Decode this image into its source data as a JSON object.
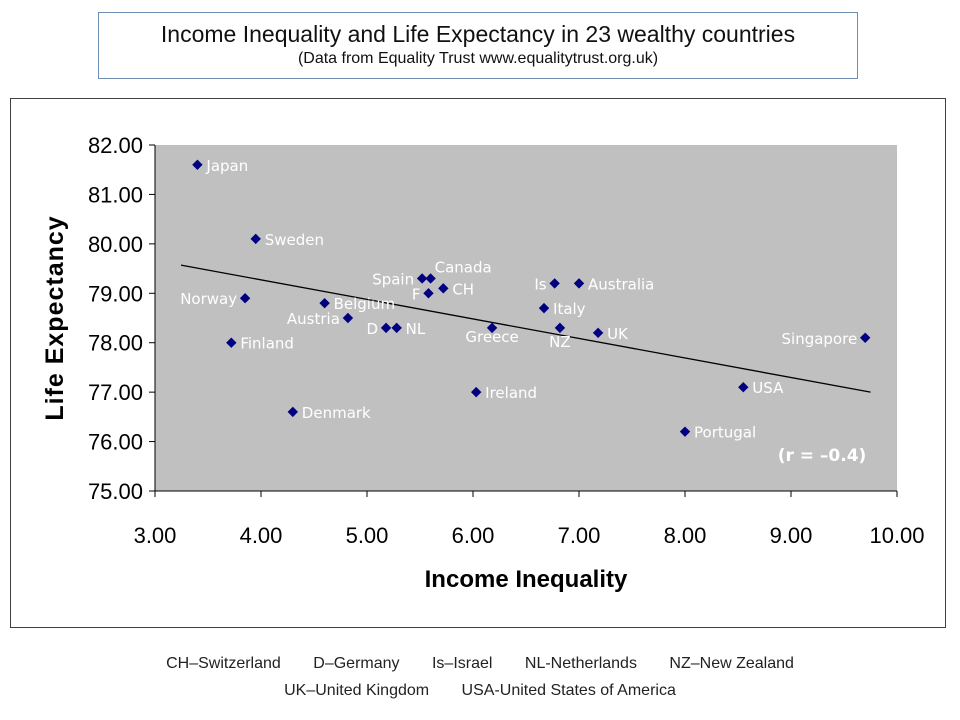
{
  "title": "Income Inequality and Life Expectancy in 23 wealthy countries",
  "subtitle": "(Data from Equality Trust  www.equalitytrust.org.uk)",
  "footer": {
    "line1": [
      "CH–Switzerland",
      "D–Germany",
      "Is–Israel",
      "NL-Netherlands",
      "NZ–New Zealand"
    ],
    "line2": [
      "UK–United Kingdom",
      "USA-United States of America"
    ]
  },
  "colors": {
    "plot_background": "#c0c0c0",
    "marker": "#000080",
    "point_label": "#ffffff",
    "trendline": "#000000"
  },
  "chart_data": {
    "type": "scatter",
    "xlabel": "Income Inequality",
    "ylabel": "Life Expectancy",
    "xlim": [
      3.0,
      10.0
    ],
    "ylim": [
      75.0,
      82.0
    ],
    "xticks": [
      "3.00",
      "4.00",
      "5.00",
      "6.00",
      "7.00",
      "8.00",
      "9.00",
      "10.00"
    ],
    "yticks": [
      "75.00",
      "76.00",
      "77.00",
      "78.00",
      "79.00",
      "80.00",
      "81.00",
      "82.00"
    ],
    "grid": false,
    "legend": "none",
    "annotation": "(r = –0.4)",
    "trendline": {
      "x": [
        3.25,
        9.75
      ],
      "y": [
        79.57,
        77.0
      ]
    },
    "points": [
      {
        "label": "Japan",
        "x": 3.4,
        "y": 81.6,
        "pos": "right"
      },
      {
        "label": "Sweden",
        "x": 3.95,
        "y": 80.1,
        "pos": "right"
      },
      {
        "label": "Norway",
        "x": 3.85,
        "y": 78.9,
        "pos": "left"
      },
      {
        "label": "Finland",
        "x": 3.72,
        "y": 78.0,
        "pos": "right"
      },
      {
        "label": "Denmark",
        "x": 4.3,
        "y": 76.6,
        "pos": "right"
      },
      {
        "label": "Belgium",
        "x": 4.6,
        "y": 78.8,
        "pos": "right"
      },
      {
        "label": "Austria",
        "x": 4.82,
        "y": 78.5,
        "pos": "left"
      },
      {
        "label": "D",
        "x": 5.18,
        "y": 78.3,
        "pos": "left"
      },
      {
        "label": "NL",
        "x": 5.28,
        "y": 78.3,
        "pos": "right"
      },
      {
        "label": "Spain",
        "x": 5.52,
        "y": 79.3,
        "pos": "left"
      },
      {
        "label": "Canada",
        "x": 5.6,
        "y": 79.3,
        "pos": "above-right"
      },
      {
        "label": "F",
        "x": 5.58,
        "y": 79.0,
        "pos": "left"
      },
      {
        "label": "CH",
        "x": 5.72,
        "y": 79.1,
        "pos": "right"
      },
      {
        "label": "Greece",
        "x": 6.18,
        "y": 78.3,
        "pos": "below-left"
      },
      {
        "label": "Ireland",
        "x": 6.03,
        "y": 77.0,
        "pos": "right"
      },
      {
        "label": "Is",
        "x": 6.77,
        "y": 79.2,
        "pos": "left"
      },
      {
        "label": "Australia",
        "x": 7.0,
        "y": 79.2,
        "pos": "right"
      },
      {
        "label": "Italy",
        "x": 6.67,
        "y": 78.7,
        "pos": "right"
      },
      {
        "label": "NZ",
        "x": 6.82,
        "y": 78.3,
        "pos": "below"
      },
      {
        "label": "UK",
        "x": 7.18,
        "y": 78.2,
        "pos": "right"
      },
      {
        "label": "USA",
        "x": 8.55,
        "y": 77.1,
        "pos": "right"
      },
      {
        "label": "Portugal",
        "x": 8.0,
        "y": 76.2,
        "pos": "right"
      },
      {
        "label": "Singapore",
        "x": 9.7,
        "y": 78.1,
        "pos": "left"
      }
    ]
  }
}
